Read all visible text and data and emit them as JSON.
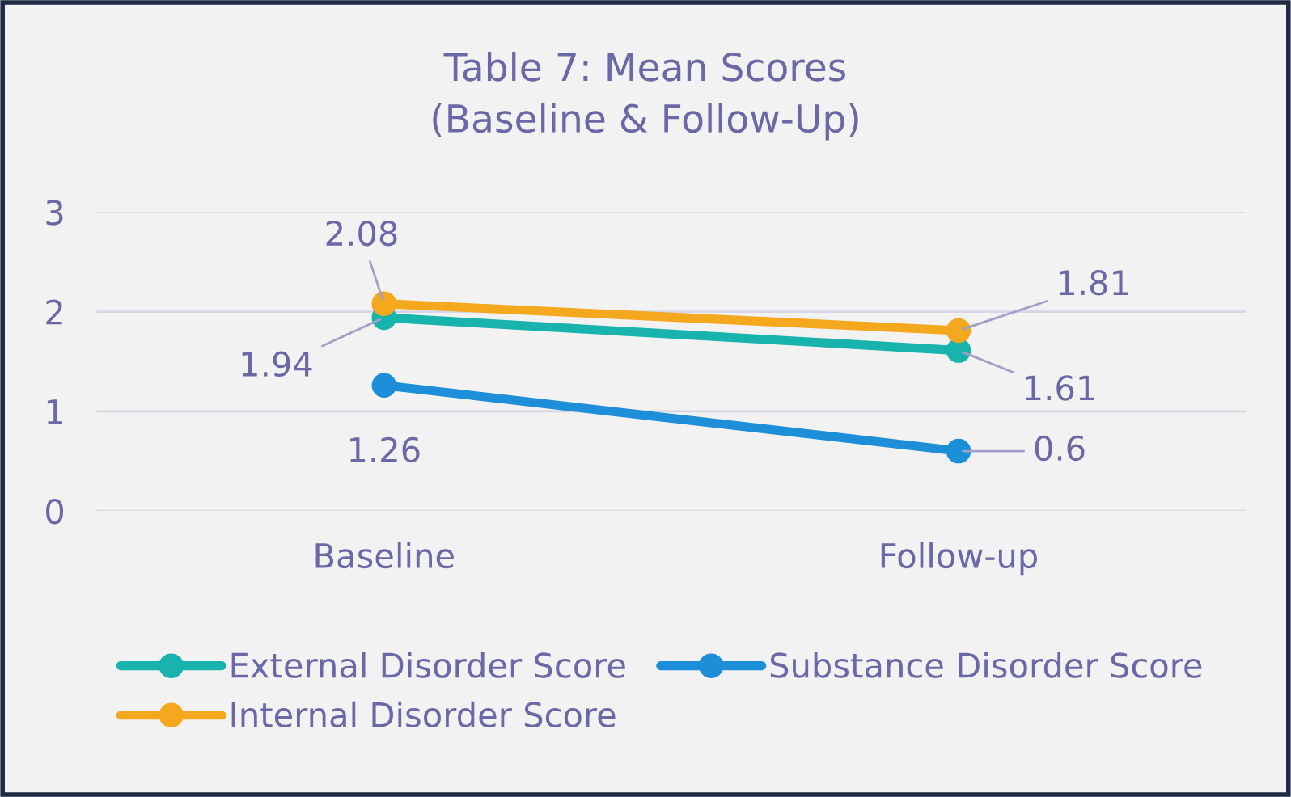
{
  "chart_data": {
    "type": "line",
    "title": "Table 7: Mean Scores\n(Baseline & Follow-Up)",
    "categories": [
      "Baseline",
      "Follow-up"
    ],
    "series": [
      {
        "name": "External Disorder Score",
        "color": "#19b3ae",
        "values": [
          1.94,
          1.61
        ]
      },
      {
        "name": "Internal Disorder Score",
        "color": "#f4a81d",
        "values": [
          2.08,
          1.81
        ]
      },
      {
        "name": "Substance Disorder Score",
        "color": "#1d8fd8",
        "values": [
          1.26,
          0.6
        ]
      }
    ],
    "ylim": [
      0,
      3
    ],
    "yticks": [
      0,
      1,
      2,
      3
    ],
    "grid": "y",
    "legend": "bottom",
    "marker": "circle",
    "line_style": "solid",
    "data_labels": true
  }
}
